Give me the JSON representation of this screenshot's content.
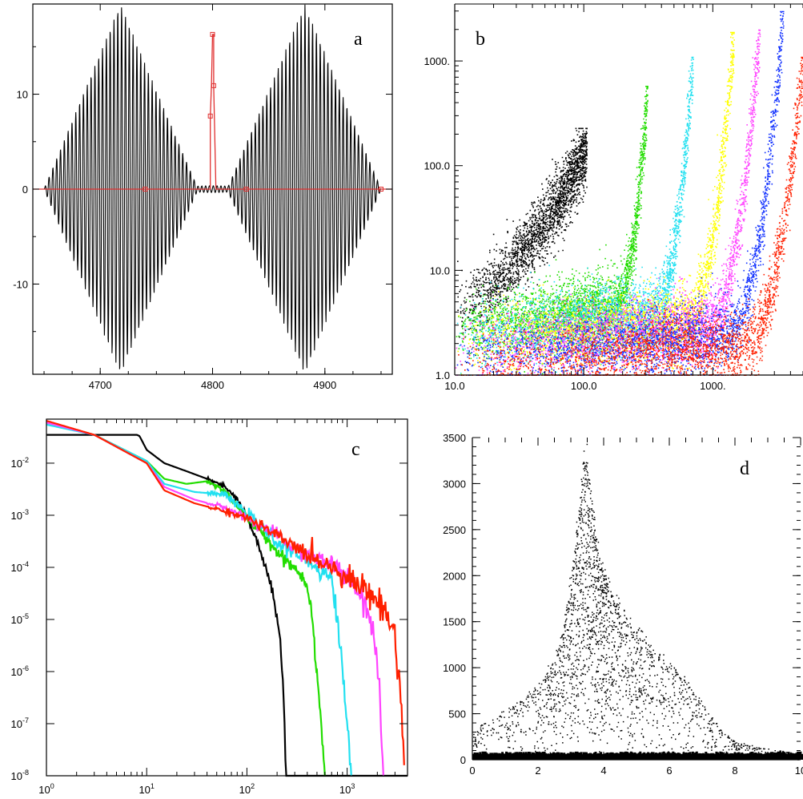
{
  "chart_data": [
    {
      "panel": "a",
      "type": "line",
      "panel_label": "a",
      "xlim": [
        4640,
        4960
      ],
      "ylim": [
        -19.5,
        19.5
      ],
      "xticks": [
        {
          "v": 4700,
          "t": "4700"
        },
        {
          "v": 4800,
          "t": "4800"
        },
        {
          "v": 4900,
          "t": "4900"
        }
      ],
      "yticks": [
        {
          "v": 10,
          "t": "10"
        },
        {
          "v": 0,
          "t": "0"
        },
        {
          "v": -10,
          "t": "-10"
        }
      ],
      "series": [
        {
          "color": "#000000",
          "kind": "oscillation",
          "envelope_peaks": [
            {
              "x": 4718,
              "amp": 19.5
            },
            {
              "x": 4882,
              "amp": 19.5
            }
          ],
          "half_width": 68,
          "period": 3.4,
          "x_range": [
            4640,
            4960
          ]
        },
        {
          "color": "#e03030",
          "kind": "trajectory",
          "x": [
            4640,
            4740,
            4798,
            4798,
            4799,
            4800,
            4801,
            4801,
            4803,
            4830,
            4950,
            4960
          ],
          "y": [
            0,
            0,
            0,
            7.7,
            10.9,
            16.3,
            16.3,
            10.9,
            0,
            0,
            0,
            0
          ],
          "markers": [
            [
              4740,
              0
            ],
            [
              4798,
              7.7
            ],
            [
              4801,
              10.9
            ],
            [
              4800,
              16.3
            ],
            [
              4830,
              0
            ],
            [
              4950,
              0
            ]
          ]
        }
      ]
    },
    {
      "panel": "b",
      "type": "scatter",
      "panel_label": "b",
      "xscale": "log",
      "yscale": "log",
      "xlim": [
        10,
        5000
      ],
      "ylim": [
        1,
        3500
      ],
      "xticks": [
        {
          "v": 10,
          "t": "10.0"
        },
        {
          "v": 100,
          "t": "100.0"
        },
        {
          "v": 1000,
          "t": "1000."
        }
      ],
      "yticks": [
        {
          "v": 1000,
          "t": "1000."
        },
        {
          "v": 100,
          "t": "100.0"
        },
        {
          "v": 10,
          "t": "10.0"
        },
        {
          "v": 1,
          "t": "1.0"
        }
      ],
      "series": [
        {
          "color": "#000000",
          "x_edge": 105,
          "peak": 230,
          "base": 4.5
        },
        {
          "color": "#22dd00",
          "x_edge": 310,
          "peak": 580,
          "base": 2.8
        },
        {
          "color": "#22e0f0",
          "x_edge": 700,
          "peak": 1100,
          "base": 2.4
        },
        {
          "color": "#ffff00",
          "x_edge": 1450,
          "peak": 1900,
          "base": 2.1
        },
        {
          "color": "#ff44ff",
          "x_edge": 2300,
          "peak": 2000,
          "base": 1.8
        },
        {
          "color": "#1030ff",
          "x_edge": 3500,
          "peak": 3000,
          "base": 1.5
        },
        {
          "color": "#ff2000",
          "x_edge": 5000,
          "peak": 1100,
          "base": 1.2
        }
      ]
    },
    {
      "panel": "c",
      "type": "line",
      "panel_label": "c",
      "xscale": "log",
      "yscale": "log",
      "xlim": [
        1,
        4000
      ],
      "ylim": [
        1e-08,
        0.07
      ],
      "xticks": [
        {
          "v": 1,
          "b": "10",
          "e": "0"
        },
        {
          "v": 10,
          "b": "10",
          "e": "1"
        },
        {
          "v": 100,
          "b": "10",
          "e": "2"
        },
        {
          "v": 1000,
          "b": "10",
          "e": "3"
        }
      ],
      "yticks": [
        {
          "v": 0.01,
          "b": "10",
          "e": "-2"
        },
        {
          "v": 0.001,
          "b": "10",
          "e": "-3"
        },
        {
          "v": 0.0001,
          "b": "10",
          "e": "-4"
        },
        {
          "v": 1e-05,
          "b": "10",
          "e": "-5"
        },
        {
          "v": 1e-06,
          "b": "10",
          "e": "-6"
        },
        {
          "v": 1e-07,
          "b": "10",
          "e": "-7"
        },
        {
          "v": 1e-08,
          "b": "10",
          "e": "-8"
        }
      ],
      "series": [
        {
          "color": "#000000",
          "x": [
            1,
            8,
            8.5,
            10,
            15,
            25,
            40,
            60,
            80,
            100,
            120,
            140,
            160,
            180,
            200,
            215,
            225,
            235,
            245,
            4000
          ],
          "y": [
            0.035,
            0.035,
            0.033,
            0.018,
            0.01,
            0.007,
            0.005,
            0.0035,
            0.002,
            0.0009,
            0.0004,
            0.00018,
            8e-05,
            3e-05,
            1e-05,
            4e-06,
            1e-06,
            2e-07,
            1e-08,
            1e-08
          ]
        },
        {
          "color": "#22dd00",
          "x": [
            1,
            3,
            10,
            15,
            25,
            40,
            60,
            100,
            150,
            200,
            300,
            400,
            450,
            500,
            550,
            600
          ],
          "y": [
            0.06,
            0.035,
            0.011,
            0.005,
            0.004,
            0.0045,
            0.003,
            0.0009,
            0.0004,
            0.0002,
            0.0001,
            5e-05,
            1e-05,
            1e-06,
            1e-07,
            1e-08
          ]
        },
        {
          "color": "#22e0f0",
          "x": [
            1,
            3,
            10,
            15,
            30,
            60,
            100,
            200,
            400,
            700,
            800,
            900,
            1000,
            1100
          ],
          "y": [
            0.055,
            0.035,
            0.011,
            0.004,
            0.0028,
            0.0025,
            0.0011,
            0.0003,
            0.00014,
            6e-05,
            1e-05,
            1e-06,
            1e-07,
            1e-08
          ]
        },
        {
          "color": "#ff44ff",
          "x": [
            1,
            3,
            10,
            15,
            30,
            60,
            100,
            200,
            400,
            800,
            1200,
            1600,
            1900,
            2100,
            2200,
            2300
          ],
          "y": [
            0.06,
            0.035,
            0.01,
            0.0035,
            0.002,
            0.0014,
            0.0009,
            0.0004,
            0.00017,
            0.0001,
            4e-05,
            1.5e-05,
            3e-06,
            5e-07,
            5e-08,
            1e-08
          ]
        },
        {
          "color": "#ff2000",
          "x": [
            1,
            3,
            10,
            15,
            30,
            60,
            100,
            200,
            400,
            800,
            1600,
            2400,
            3000,
            3300,
            3500,
            3700
          ],
          "y": [
            0.065,
            0.035,
            0.01,
            0.003,
            0.0017,
            0.0012,
            0.0009,
            0.0004,
            0.00018,
            9e-05,
            3.5e-05,
            1.5e-05,
            5e-06,
            8e-07,
            1.5e-07,
            2e-08
          ]
        }
      ]
    },
    {
      "panel": "d",
      "type": "scatter",
      "panel_label": "d",
      "xlim": [
        0,
        10
      ],
      "ylim": [
        0,
        3500
      ],
      "xticks": [
        {
          "v": 0,
          "t": "0"
        },
        {
          "v": 2,
          "t": "2"
        },
        {
          "v": 4,
          "t": "4"
        },
        {
          "v": 6,
          "t": "6"
        },
        {
          "v": 8,
          "t": "8"
        },
        {
          "v": 10,
          "t": "10"
        }
      ],
      "yticks": [
        {
          "v": 0,
          "t": "0"
        },
        {
          "v": 500,
          "t": "500"
        },
        {
          "v": 1000,
          "t": "1000"
        },
        {
          "v": 1500,
          "t": "1500"
        },
        {
          "v": 2000,
          "t": "2000"
        },
        {
          "v": 2500,
          "t": "2500"
        },
        {
          "v": 3000,
          "t": "3000"
        },
        {
          "v": 3500,
          "t": "3500"
        }
      ],
      "series": [
        {
          "color": "#000000",
          "envelope_x": [
            0,
            0.5,
            1,
            1.5,
            2,
            2.5,
            2.8,
            3.0,
            3.2,
            3.4,
            3.5,
            3.6,
            3.8,
            4.0,
            4.3,
            4.6,
            5.0,
            5.5,
            6.0,
            6.5,
            7.0,
            7.5,
            8.0,
            9.0,
            10.0
          ],
          "envelope_y": [
            300,
            450,
            550,
            650,
            800,
            1100,
            1500,
            2000,
            2600,
            3350,
            3250,
            2800,
            2300,
            2000,
            1750,
            1600,
            1400,
            1200,
            1050,
            850,
            600,
            350,
            200,
            120,
            60
          ]
        }
      ]
    }
  ]
}
